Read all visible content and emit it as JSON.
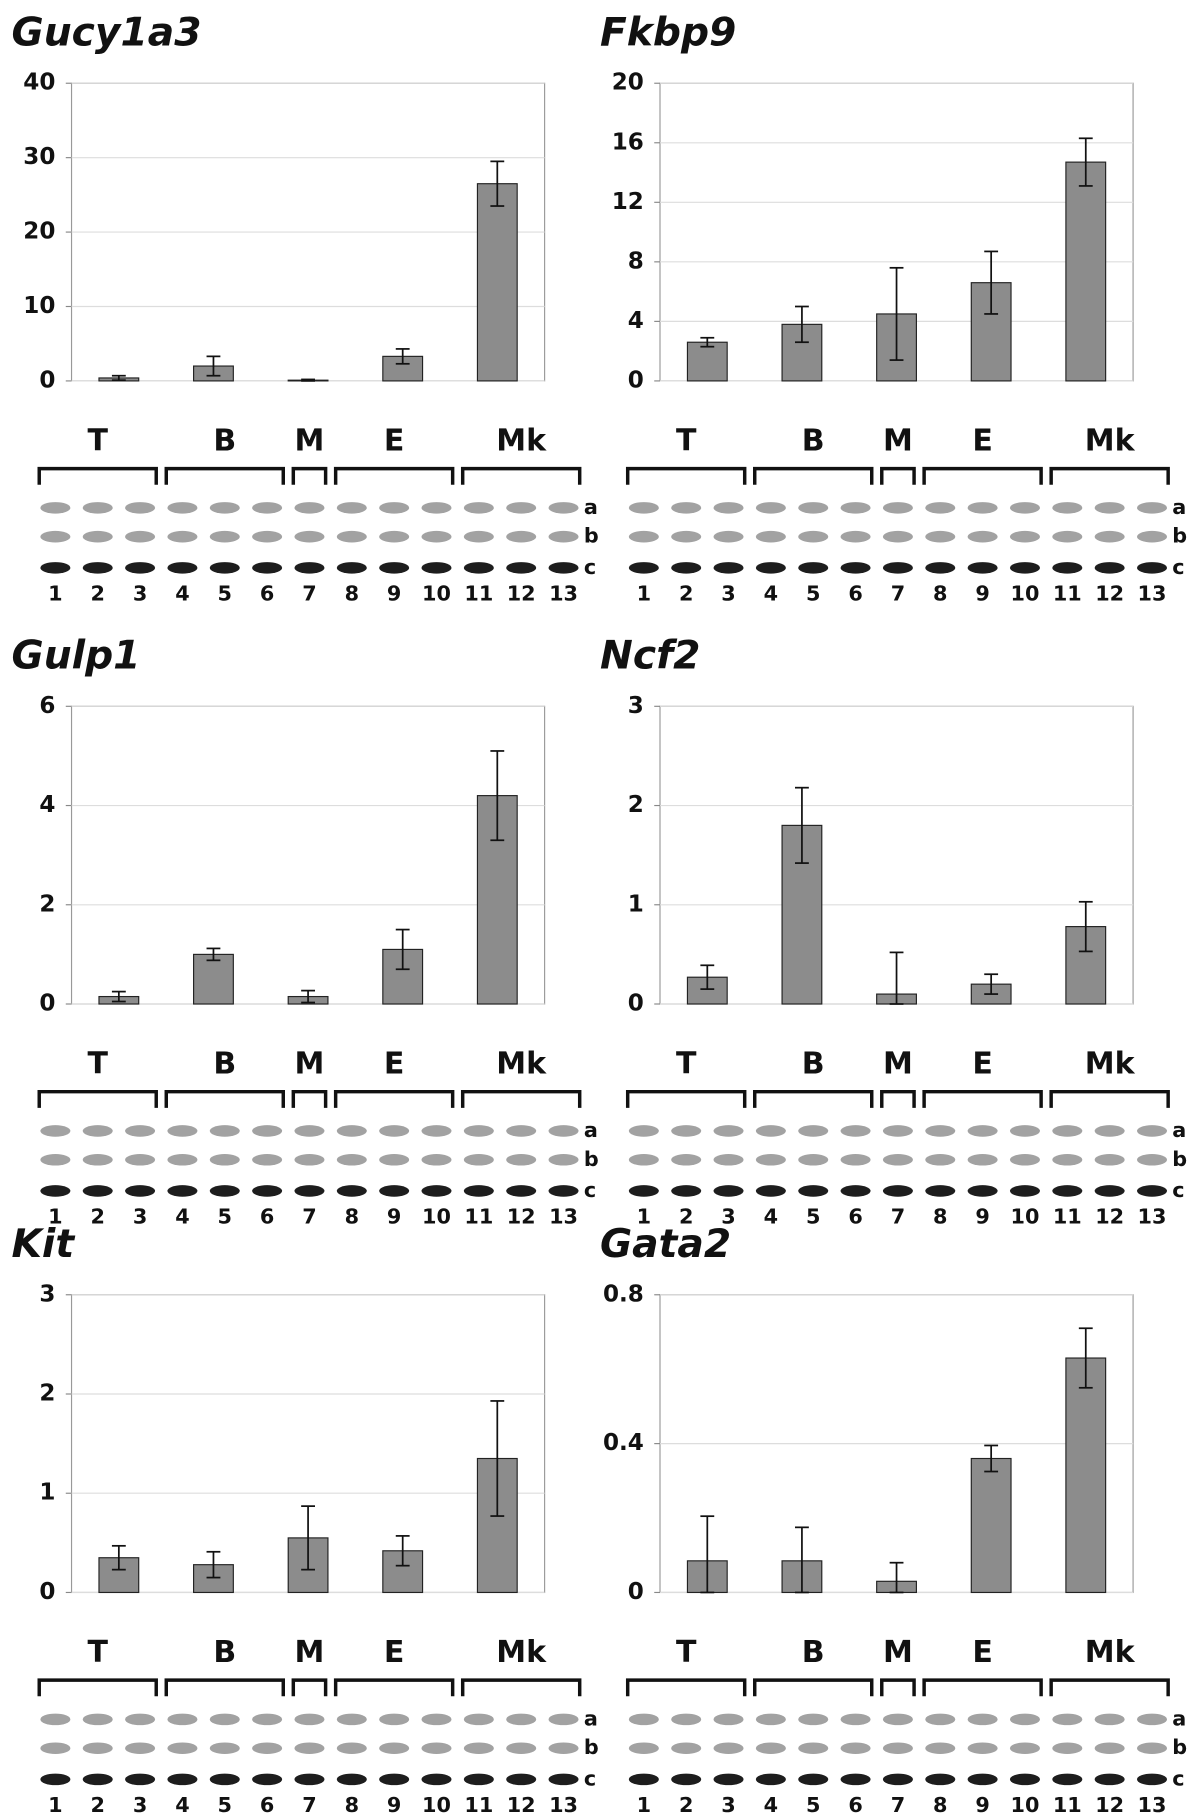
{
  "chart_data": [
    {
      "type": "bar",
      "title": "Gucy1a3",
      "categories": [
        "T",
        "B",
        "M",
        "E",
        "Mk"
      ],
      "values": [
        0.4,
        2.0,
        0.1,
        3.3,
        26.5
      ],
      "errors": [
        0.3,
        1.3,
        0.1,
        1.0,
        3.0
      ],
      "color": "#8c8c8c",
      "ylim": [
        0,
        40
      ],
      "yticks": [
        0,
        10,
        20,
        30,
        40
      ],
      "grid": true,
      "lanes": [
        "1",
        "2",
        "3",
        "4",
        "5",
        "6",
        "7",
        "8",
        "9",
        "10",
        "11",
        "12",
        "13"
      ],
      "bands": [
        "a",
        "b",
        "c"
      ]
    },
    {
      "type": "bar",
      "title": "Fkbp9",
      "categories": [
        "T",
        "B",
        "M",
        "E",
        "Mk"
      ],
      "values": [
        2.6,
        3.8,
        4.5,
        6.6,
        14.7
      ],
      "errors": [
        0.3,
        1.2,
        3.1,
        2.1,
        1.6
      ],
      "color": "#8c8c8c",
      "ylim": [
        0,
        20
      ],
      "yticks": [
        0,
        4,
        8,
        12,
        16,
        20
      ],
      "grid": true,
      "lanes": [
        "1",
        "2",
        "3",
        "4",
        "5",
        "6",
        "7",
        "8",
        "9",
        "10",
        "11",
        "12",
        "13"
      ],
      "bands": [
        "a",
        "b",
        "c"
      ]
    },
    {
      "type": "bar",
      "title": "Gulp1",
      "categories": [
        "T",
        "B",
        "M",
        "E",
        "Mk"
      ],
      "values": [
        0.15,
        1.0,
        0.15,
        1.1,
        4.2
      ],
      "errors": [
        0.1,
        0.12,
        0.12,
        0.4,
        0.9
      ],
      "color": "#8c8c8c",
      "ylim": [
        0,
        6
      ],
      "yticks": [
        0,
        2,
        4,
        6
      ],
      "grid": true,
      "lanes": [
        "1",
        "2",
        "3",
        "4",
        "5",
        "6",
        "7",
        "8",
        "9",
        "10",
        "11",
        "12",
        "13"
      ],
      "bands": [
        "a",
        "b",
        "c"
      ]
    },
    {
      "type": "bar",
      "title": "Ncf2",
      "categories": [
        "T",
        "B",
        "M",
        "E",
        "Mk"
      ],
      "values": [
        0.27,
        1.8,
        0.1,
        0.2,
        0.78
      ],
      "errors": [
        0.12,
        0.38,
        0.42,
        0.1,
        0.25
      ],
      "color": "#8c8c8c",
      "ylim": [
        0,
        3
      ],
      "yticks": [
        0,
        1,
        2,
        3
      ],
      "grid": true,
      "lanes": [
        "1",
        "2",
        "3",
        "4",
        "5",
        "6",
        "7",
        "8",
        "9",
        "10",
        "11",
        "12",
        "13"
      ],
      "bands": [
        "a",
        "b",
        "c"
      ]
    },
    {
      "type": "bar",
      "title": "Kit",
      "categories": [
        "T",
        "B",
        "M",
        "E",
        "Mk"
      ],
      "values": [
        0.35,
        0.28,
        0.55,
        0.42,
        1.35
      ],
      "errors": [
        0.12,
        0.13,
        0.32,
        0.15,
        0.58
      ],
      "color": "#8c8c8c",
      "ylim": [
        0,
        3
      ],
      "yticks": [
        0,
        1,
        2,
        3
      ],
      "grid": true,
      "lanes": [
        "1",
        "2",
        "3",
        "4",
        "5",
        "6",
        "7",
        "8",
        "9",
        "10",
        "11",
        "12",
        "13"
      ],
      "bands": [
        "a",
        "b",
        "c"
      ]
    },
    {
      "type": "bar",
      "title": "Gata2",
      "categories": [
        "T",
        "B",
        "M",
        "E",
        "Mk"
      ],
      "values": [
        0.085,
        0.085,
        0.03,
        0.36,
        0.63
      ],
      "errors": [
        0.12,
        0.09,
        0.05,
        0.035,
        0.08
      ],
      "color": "#8c8c8c",
      "ylim": [
        0,
        0.8
      ],
      "yticks": [
        0,
        0.4,
        0.8
      ],
      "grid": true,
      "lanes": [
        "1",
        "2",
        "3",
        "4",
        "5",
        "6",
        "7",
        "8",
        "9",
        "10",
        "11",
        "12",
        "13"
      ],
      "bands": [
        "a",
        "b",
        "c"
      ]
    }
  ]
}
